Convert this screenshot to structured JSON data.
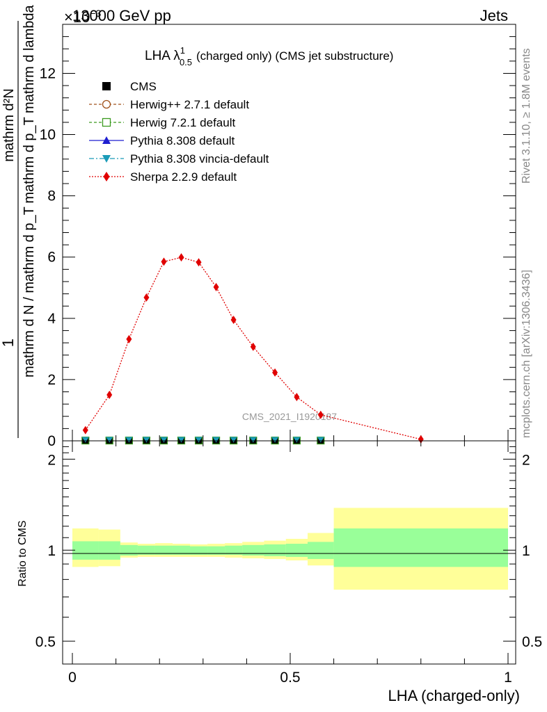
{
  "header": {
    "beam": "13000 GeV pp",
    "process": "Jets",
    "exponent_label": "×10",
    "exponent_power": "−3"
  },
  "side_labels": {
    "rivet": "Rivet 3.1.10, ≥ 1.8M events",
    "mcplots": "mcplots.cern.ch [arXiv:1306.3436]"
  },
  "watermark": "CMS_2021_I1920187",
  "chart_data": [
    {
      "type": "line",
      "title": "LHA λ",
      "title_sup": "1",
      "title_sub": "0.5",
      "title_rest": "(charged only) (CMS jet substructure)",
      "ylabel_parts": [
        "1",
        "mathrm d N / mathrm d p",
        "T",
        "mathrm d N",
        "mathrm d p",
        "T",
        "mathrm d lambda"
      ],
      "ylabel_num": "mathrm d²N",
      "ylabel_den": "mathrm d p_T mathrm d lambda",
      "ylabel_prefix_num": "1",
      "ylabel_prefix_den": "mathrm d N / mathrm d p_T",
      "xlim": [
        0,
        1
      ],
      "ylim": [
        0,
        13.6
      ],
      "yticks": [
        0,
        2,
        4,
        6,
        8,
        10,
        12
      ],
      "ytick_labels": [
        "0",
        "2",
        "4",
        "6",
        "8",
        "10",
        "12"
      ],
      "bin_edges": [
        0,
        0.06,
        0.11,
        0.15,
        0.19,
        0.23,
        0.27,
        0.31,
        0.35,
        0.39,
        0.44,
        0.49,
        0.54,
        0.6,
        1.0
      ],
      "legend": [
        {
          "label": "CMS",
          "color": "#000000",
          "marker": "square",
          "line": "none"
        },
        {
          "label": "Herwig++ 2.7.1 default",
          "color": "#a0521b",
          "marker": "circle-open",
          "line": "dashed"
        },
        {
          "label": "Herwig 7.2.1 default",
          "color": "#3a9a1e",
          "marker": "square-open",
          "line": "dashed"
        },
        {
          "label": "Pythia 8.308 default",
          "color": "#1f1fd0",
          "marker": "triangle-up",
          "line": "solid"
        },
        {
          "label": "Pythia 8.308 vincia-default",
          "color": "#1a9bb8",
          "marker": "triangle-down",
          "line": "dashdot"
        },
        {
          "label": "Sherpa 2.2.9 default",
          "color": "#e00000",
          "marker": "diamond",
          "line": "dotted"
        }
      ],
      "series": [
        {
          "name": "Sherpa 2.2.9 default",
          "x": [
            0.03,
            0.085,
            0.13,
            0.17,
            0.21,
            0.25,
            0.29,
            0.33,
            0.37,
            0.415,
            0.465,
            0.515,
            0.57,
            0.8
          ],
          "values": [
            0.35,
            1.5,
            3.32,
            4.68,
            5.85,
            5.99,
            5.83,
            5.02,
            3.95,
            3.07,
            2.23,
            1.43,
            0.85,
            0.05
          ]
        },
        {
          "name": "CMS / MC (near zero)",
          "x": [
            0.03,
            0.085,
            0.13,
            0.17,
            0.21,
            0.25,
            0.29,
            0.33,
            0.37,
            0.415,
            0.465,
            0.515,
            0.57
          ],
          "values": [
            0.01,
            0.01,
            0.01,
            0.01,
            0.01,
            0.01,
            0.01,
            0.01,
            0.01,
            0.01,
            0.01,
            0.01,
            0.01
          ]
        }
      ]
    },
    {
      "type": "area",
      "ylabel": "Ratio to CMS",
      "xlabel": "LHA (charged-only)",
      "xlim": [
        0,
        1
      ],
      "ylim": [
        0.42,
        2.3
      ],
      "log_y": true,
      "yticks": [
        0.5,
        1,
        2
      ],
      "ytick_labels": [
        "0.5",
        "1",
        "2"
      ],
      "xticks": [
        0,
        0.5,
        1
      ],
      "xtick_labels": [
        "0",
        "0.5",
        "1"
      ],
      "bin_edges": [
        0,
        0.06,
        0.11,
        0.15,
        0.19,
        0.23,
        0.27,
        0.31,
        0.35,
        0.39,
        0.44,
        0.49,
        0.54,
        0.6,
        1.0
      ],
      "band_stat": [
        [
          0.93,
          1.07
        ],
        [
          0.93,
          1.07
        ],
        [
          0.96,
          1.04
        ],
        [
          0.965,
          1.035
        ],
        [
          0.965,
          1.035
        ],
        [
          0.965,
          1.035
        ],
        [
          0.965,
          1.03
        ],
        [
          0.965,
          1.03
        ],
        [
          0.965,
          1.035
        ],
        [
          0.96,
          1.04
        ],
        [
          0.955,
          1.045
        ],
        [
          0.95,
          1.05
        ],
        [
          0.935,
          1.065
        ],
        [
          0.88,
          1.18
        ]
      ],
      "band_total": [
        [
          0.88,
          1.18
        ],
        [
          0.885,
          1.17
        ],
        [
          0.945,
          1.06
        ],
        [
          0.95,
          1.05
        ],
        [
          0.95,
          1.055
        ],
        [
          0.95,
          1.05
        ],
        [
          0.95,
          1.045
        ],
        [
          0.95,
          1.05
        ],
        [
          0.945,
          1.055
        ],
        [
          0.94,
          1.065
        ],
        [
          0.935,
          1.075
        ],
        [
          0.925,
          1.09
        ],
        [
          0.89,
          1.14
        ],
        [
          0.74,
          1.38
        ]
      ],
      "colors": {
        "stat": "#99ff99",
        "total": "#ffff99"
      }
    }
  ]
}
